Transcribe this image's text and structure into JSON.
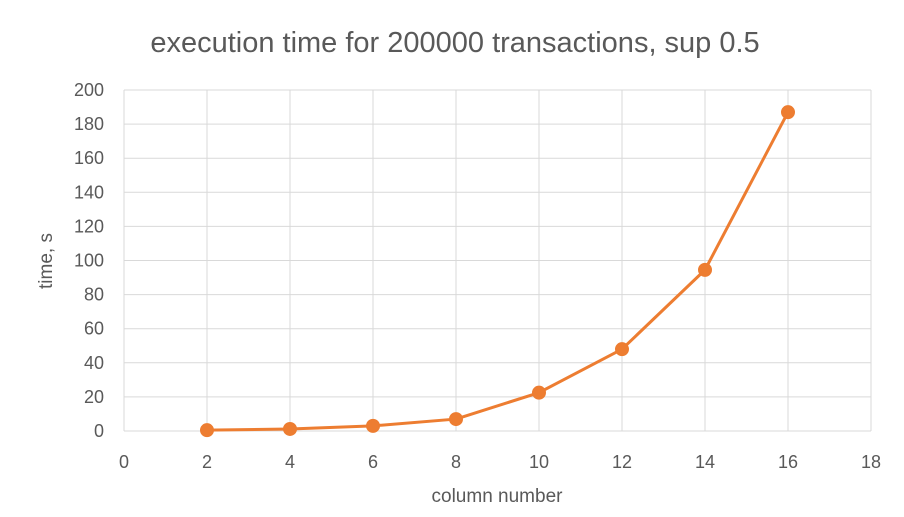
{
  "chart_data": {
    "type": "scatter",
    "title": "execution time for 200000 transactions, sup 0.5",
    "xlabel": "column number",
    "ylabel": "time, s",
    "xlim": [
      0,
      18
    ],
    "ylim": [
      0,
      200
    ],
    "x_ticks": [
      0,
      2,
      4,
      6,
      8,
      10,
      12,
      14,
      16,
      18
    ],
    "y_ticks": [
      0,
      20,
      40,
      60,
      80,
      100,
      120,
      140,
      160,
      180,
      200
    ],
    "grid": true,
    "legend": "none",
    "series": [
      {
        "color": "#ed7d31",
        "marker": "circle",
        "connected": true,
        "points": [
          {
            "x": 2,
            "y": 0.5
          },
          {
            "x": 4,
            "y": 1.2
          },
          {
            "x": 6,
            "y": 3
          },
          {
            "x": 8,
            "y": 7
          },
          {
            "x": 10,
            "y": 22.5
          },
          {
            "x": 12,
            "y": 48
          },
          {
            "x": 14,
            "y": 94.5
          },
          {
            "x": 16,
            "y": 187
          }
        ]
      }
    ]
  }
}
